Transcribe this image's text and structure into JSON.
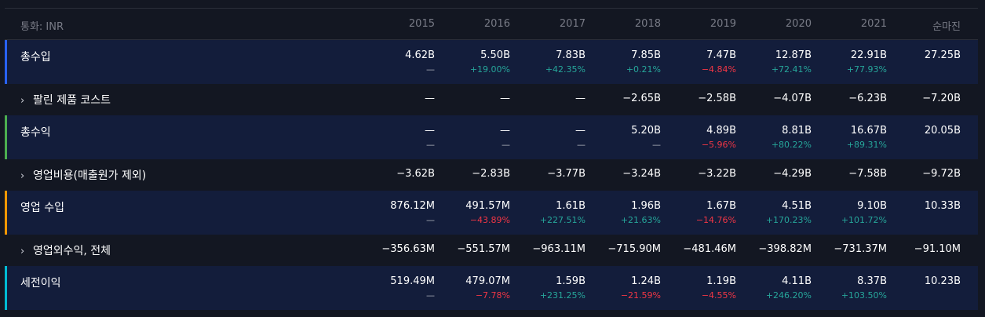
{
  "header": {
    "currency_label": "통화: INR",
    "columns": [
      "2015",
      "2016",
      "2017",
      "2018",
      "2019",
      "2020",
      "2021",
      "순마진"
    ]
  },
  "colors": {
    "background": "#131722",
    "row_highlight": "#131d3b",
    "positive": "#26a69a",
    "negative": "#f23645"
  },
  "rows": [
    {
      "label": "총수입",
      "type": "main",
      "accent": "#2962ff",
      "values": [
        "4.62B",
        "5.50B",
        "7.83B",
        "7.85B",
        "7.47B",
        "12.87B",
        "22.91B",
        "27.25B"
      ],
      "changes": [
        "—",
        "+19.00%",
        "+42.35%",
        "+0.21%",
        "−4.84%",
        "+72.41%",
        "+77.93%",
        ""
      ]
    },
    {
      "label": "팔린 제품 코스트",
      "type": "sub",
      "values": [
        "—",
        "—",
        "—",
        "−2.65B",
        "−2.58B",
        "−4.07B",
        "−6.23B",
        "−7.20B"
      ]
    },
    {
      "label": "총수익",
      "type": "main",
      "accent": "#4caf50",
      "values": [
        "—",
        "—",
        "—",
        "5.20B",
        "4.89B",
        "8.81B",
        "16.67B",
        "20.05B"
      ],
      "changes": [
        "—",
        "—",
        "—",
        "—",
        "−5.96%",
        "+80.22%",
        "+89.31%",
        ""
      ]
    },
    {
      "label": "영업비용(매출원가 제외)",
      "type": "sub",
      "values": [
        "−3.62B",
        "−2.83B",
        "−3.77B",
        "−3.24B",
        "−3.22B",
        "−4.29B",
        "−7.58B",
        "−9.72B"
      ]
    },
    {
      "label": "영업 수입",
      "type": "main",
      "accent": "#ff9800",
      "values": [
        "876.12M",
        "491.57M",
        "1.61B",
        "1.96B",
        "1.67B",
        "4.51B",
        "9.10B",
        "10.33B"
      ],
      "changes": [
        "—",
        "−43.89%",
        "+227.51%",
        "+21.63%",
        "−14.76%",
        "+170.23%",
        "+101.72%",
        ""
      ]
    },
    {
      "label": "영업외수익, 전체",
      "type": "sub",
      "values": [
        "−356.63M",
        "−551.57M",
        "−963.11M",
        "−715.90M",
        "−481.46M",
        "−398.82M",
        "−731.37M",
        "−91.10M"
      ]
    },
    {
      "label": "세전이익",
      "type": "main",
      "accent": "#00bcd4",
      "values": [
        "519.49M",
        "479.07M",
        "1.59B",
        "1.24B",
        "1.19B",
        "4.11B",
        "8.37B",
        "10.23B"
      ],
      "changes": [
        "—",
        "−7.78%",
        "+231.25%",
        "−21.59%",
        "−4.55%",
        "+246.20%",
        "+103.50%",
        ""
      ]
    }
  ]
}
